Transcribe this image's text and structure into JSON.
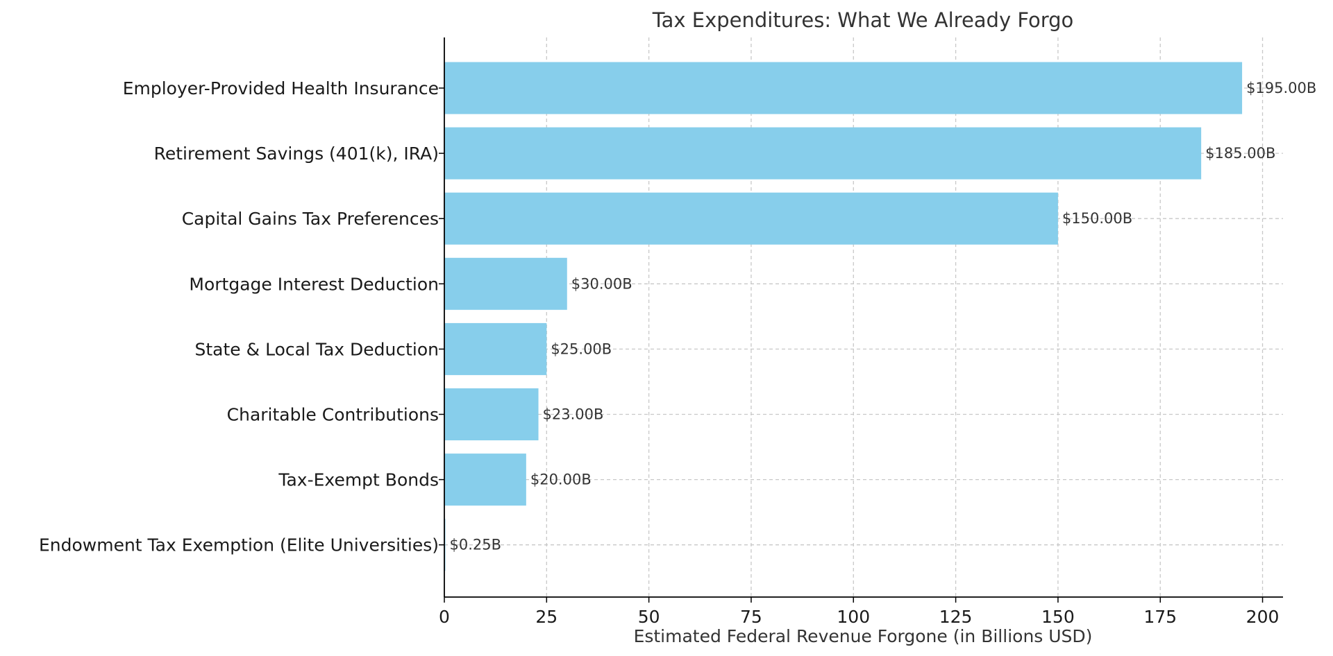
{
  "colors": {
    "bar": "#87ceeb",
    "grid": "#c8c8c8",
    "axis": "#000000",
    "text": "#333333"
  },
  "chart_data": {
    "type": "bar",
    "orientation": "horizontal",
    "title": "Tax Expenditures: What We Already Forgo",
    "xlabel": "Estimated Federal Revenue Forgone (in Billions USD)",
    "ylabel": "",
    "xlim": [
      0,
      205
    ],
    "xticks": [
      0,
      25,
      50,
      75,
      100,
      125,
      150,
      175,
      200
    ],
    "grid": true,
    "categories": [
      "Employer-Provided Health Insurance",
      "Retirement Savings (401(k), IRA)",
      "Capital Gains Tax Preferences",
      "Mortgage Interest Deduction",
      "State & Local Tax Deduction",
      "Charitable Contributions",
      "Tax-Exempt Bonds",
      "Endowment Tax Exemption (Elite Universities)"
    ],
    "values": [
      195,
      185,
      150,
      30,
      25,
      23,
      20,
      0.25
    ],
    "value_labels": [
      "$195.00B",
      "$185.00B",
      "$150.00B",
      "$30.00B",
      "$25.00B",
      "$23.00B",
      "$20.00B",
      "$0.25B"
    ]
  }
}
